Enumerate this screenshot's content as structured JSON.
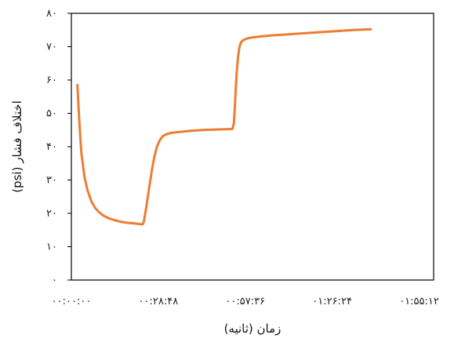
{
  "chart_data": {
    "type": "line",
    "title": "",
    "xlabel": "زمان (ثانیه)",
    "ylabel": "اختلاف فشار (psi)",
    "ylim": [
      0,
      80
    ],
    "xlim": [
      0,
      7200
    ],
    "y_ticks": [
      {
        "value": 0,
        "label": "۰"
      },
      {
        "value": 10,
        "label": "۱۰"
      },
      {
        "value": 20,
        "label": "۲۰"
      },
      {
        "value": 30,
        "label": "۳۰"
      },
      {
        "value": 40,
        "label": "۴۰"
      },
      {
        "value": 50,
        "label": "۵۰"
      },
      {
        "value": 60,
        "label": "۶۰"
      },
      {
        "value": 70,
        "label": "۷۰"
      },
      {
        "value": 80,
        "label": "۸۰"
      }
    ],
    "x_ticks": [
      {
        "value": 0,
        "label": "۰۰:۰۰:۰۰"
      },
      {
        "value": 1728,
        "label": "۰۰:۲۸:۴۸"
      },
      {
        "value": 3456,
        "label": "۰۰:۵۷:۳۶"
      },
      {
        "value": 5184,
        "label": "۰۱:۲۶:۲۴"
      },
      {
        "value": 6912,
        "label": "۰۱:۵۵:۱۲"
      }
    ],
    "grid": false,
    "legend": "none",
    "series": [
      {
        "color": "#ED7D31",
        "x": [
          120,
          160,
          200,
          260,
          320,
          400,
          480,
          560,
          650,
          750,
          850,
          950,
          1050,
          1150,
          1250,
          1350,
          1420,
          1440,
          1480,
          1520,
          1560,
          1600,
          1650,
          1700,
          1760,
          1820,
          1900,
          2000,
          2200,
          2400,
          2600,
          2800,
          3000,
          3200,
          3230,
          3250,
          3270,
          3290,
          3310,
          3330,
          3350,
          3380,
          3420,
          3500,
          3600,
          3800,
          4000,
          4200,
          4400,
          4600,
          4800,
          5000,
          5200,
          5400,
          5600,
          5800,
          5950
        ],
        "y": [
          58.5,
          47.0,
          38.0,
          31.0,
          27.0,
          23.5,
          21.5,
          20.2,
          19.2,
          18.5,
          18.0,
          17.6,
          17.3,
          17.1,
          17.0,
          16.8,
          16.7,
          17.5,
          21.0,
          25.0,
          29.0,
          33.0,
          37.0,
          40.0,
          42.0,
          43.2,
          43.8,
          44.2,
          44.5,
          44.8,
          45.0,
          45.1,
          45.2,
          45.3,
          47.0,
          52.0,
          58.0,
          63.0,
          66.5,
          69.0,
          70.5,
          71.5,
          72.0,
          72.5,
          72.8,
          73.1,
          73.4,
          73.6,
          73.8,
          74.0,
          74.2,
          74.4,
          74.6,
          74.8,
          75.0,
          75.1,
          75.2
        ]
      }
    ]
  }
}
